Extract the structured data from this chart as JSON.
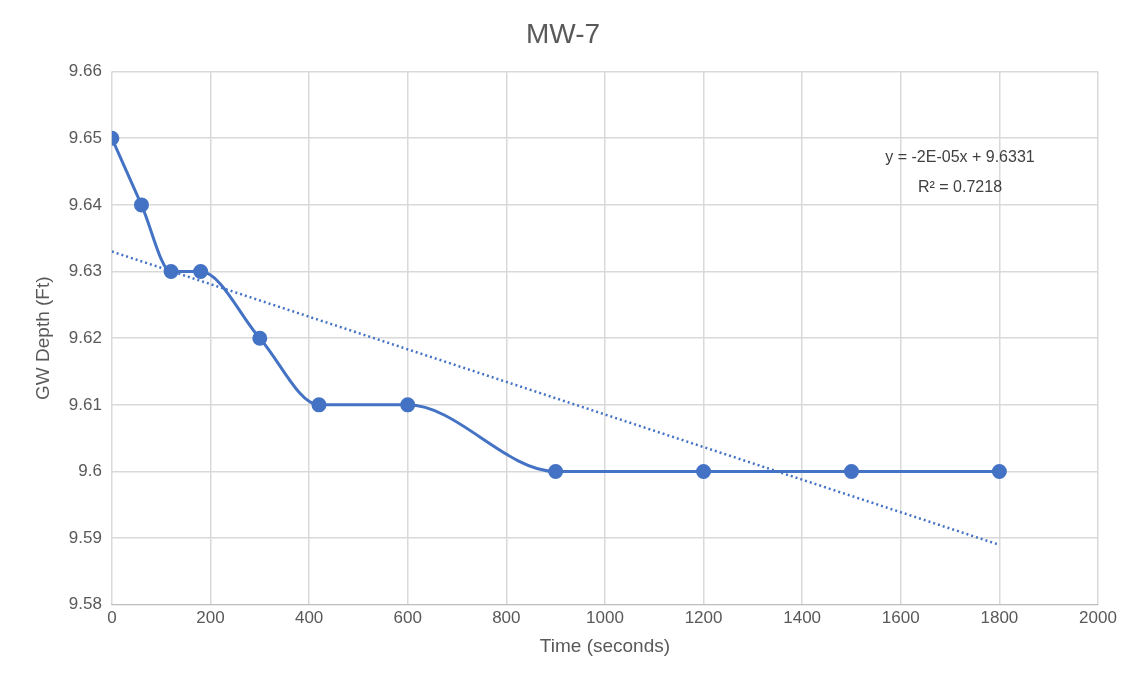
{
  "chart_data": {
    "type": "line",
    "title": "MW-7",
    "xlabel": "Time (seconds)",
    "ylabel": "GW Depth (Ft)",
    "series": [
      {
        "color": "#4472c4",
        "marker": "circle",
        "line_style": "solid",
        "x": [
          0,
          60,
          120,
          180,
          300,
          420,
          600,
          900,
          1200,
          1500,
          1800
        ],
        "values": [
          9.65,
          9.64,
          9.63,
          9.63,
          9.62,
          9.61,
          9.61,
          9.6,
          9.6,
          9.6,
          9.6
        ]
      },
      {
        "type": "line",
        "color": "#4472c4",
        "marker": "none",
        "line_style": "dotted",
        "x": [
          0,
          1800
        ],
        "values": [
          9.633,
          9.589
        ]
      }
    ],
    "xlim": [
      0,
      2000
    ],
    "xticks": [
      0,
      200,
      400,
      600,
      800,
      1000,
      1200,
      1400,
      1600,
      1800,
      2000
    ],
    "ylim": [
      9.58,
      9.66
    ],
    "yticks": [
      9.58,
      9.59,
      9.6,
      9.61,
      9.62,
      9.63,
      9.64,
      9.65,
      9.66
    ],
    "grid": true,
    "legend": false,
    "annotations": [
      "y = -2E-05x + 9.6331",
      "R² = 0.7218"
    ]
  }
}
